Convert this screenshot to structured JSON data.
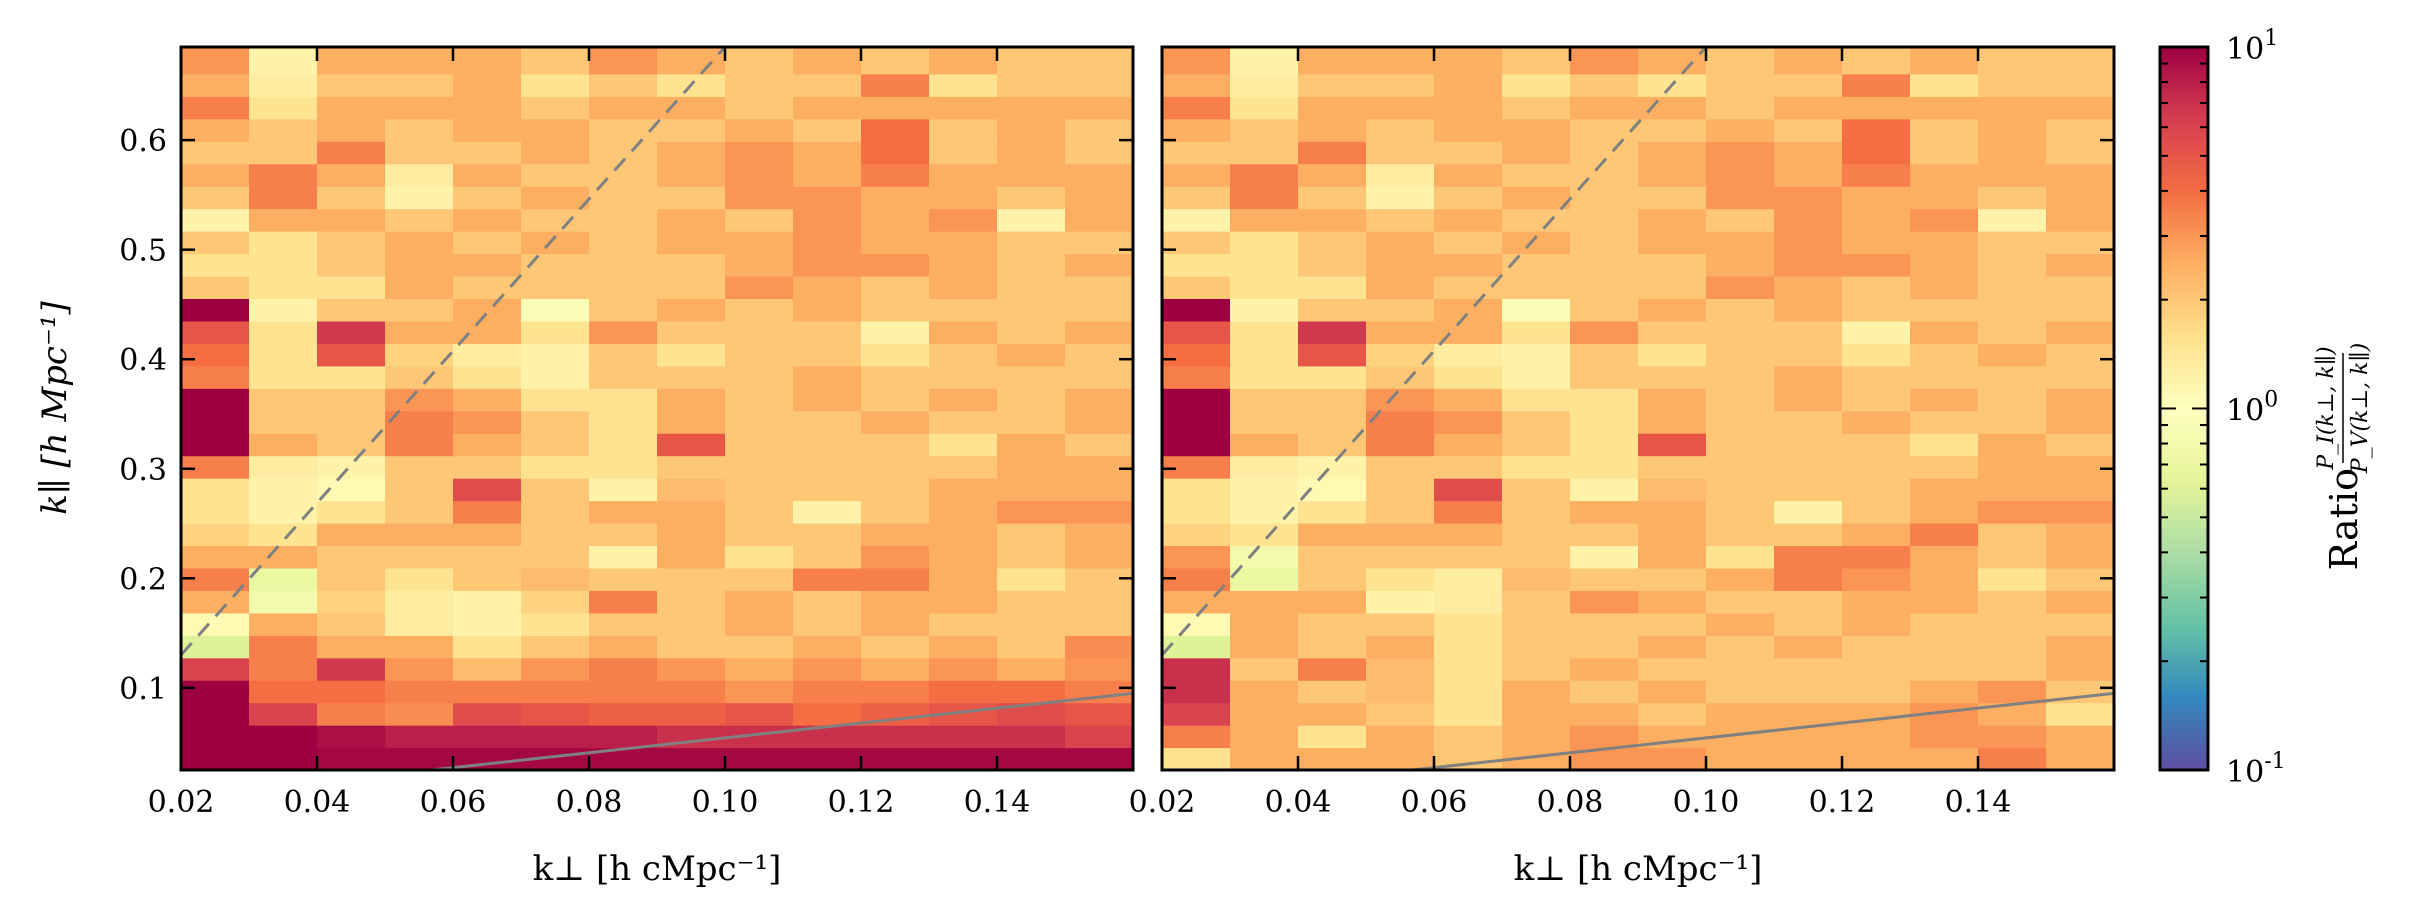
{
  "chart_data": [
    {
      "type": "heatmap",
      "panel": "left",
      "xlabel": "k⊥ [h cMpc⁻¹]",
      "ylabel": "k∥ [h Mpc⁻¹]",
      "xlim": [
        0.02,
        0.16
      ],
      "ylim": [
        0.025,
        0.685
      ],
      "xticks": [
        0.02,
        0.04,
        0.06,
        0.08,
        0.1,
        0.12,
        0.14
      ],
      "xtick_labels": [
        "0.02",
        "0.04",
        "0.06",
        "0.08",
        "0.10",
        "0.12",
        "0.14"
      ],
      "yticks": [
        0.1,
        0.2,
        0.3,
        0.4,
        0.5,
        0.6
      ],
      "ytick_labels": [
        "0.1",
        "0.2",
        "0.3",
        "0.4",
        "0.5",
        "0.6"
      ],
      "x_bin_edges": [
        0.02,
        0.03,
        0.04,
        0.05,
        0.06,
        0.07,
        0.08,
        0.09,
        0.1,
        0.11,
        0.12,
        0.13,
        0.14,
        0.15,
        0.16
      ],
      "y_bin_edges": [
        0.025,
        0.0455,
        0.066,
        0.0865,
        0.107,
        0.1275,
        0.148,
        0.1685,
        0.189,
        0.2095,
        0.23,
        0.2505,
        0.271,
        0.2915,
        0.312,
        0.3325,
        0.353,
        0.3735,
        0.394,
        0.4145,
        0.435,
        0.4555,
        0.476,
        0.4965,
        0.517,
        0.5375,
        0.558,
        0.5785,
        0.599,
        0.6195,
        0.64,
        0.6605,
        0.685
      ],
      "z": [
        [
          10,
          10,
          9.5,
          9.5,
          9.5,
          9.5,
          9.5,
          9.5,
          9.5,
          9.5,
          9.5,
          9.5,
          9.5,
          9.5
        ],
        [
          10,
          10,
          9,
          8,
          8,
          8,
          8,
          7,
          7,
          7,
          7,
          7,
          7,
          6
        ],
        [
          10,
          6,
          3.5,
          3.2,
          5.5,
          5,
          4.5,
          4.5,
          5,
          4,
          4.5,
          5,
          5.5,
          5
        ],
        [
          10,
          4,
          4,
          3.5,
          3.5,
          3.5,
          3.5,
          3.5,
          3,
          3.5,
          3.5,
          4,
          4,
          3.5
        ],
        [
          6,
          3.5,
          6.5,
          3,
          2.2,
          3,
          3.5,
          3,
          2.5,
          3,
          2.5,
          3,
          2.5,
          3
        ],
        [
          0.6,
          3.5,
          2.5,
          2.5,
          1.5,
          2,
          2.5,
          2,
          2,
          2.5,
          2,
          2.5,
          2,
          3.2
        ],
        [
          1.1,
          2.5,
          2,
          1.3,
          1.2,
          1.5,
          2,
          2,
          2.5,
          2,
          2.5,
          2,
          2,
          2
        ],
        [
          2.5,
          0.8,
          1.8,
          1.3,
          1.2,
          1.8,
          3.5,
          2,
          2.5,
          2,
          2.5,
          2.5,
          2,
          2
        ],
        [
          3.5,
          0.7,
          2,
          1.5,
          2,
          2.2,
          2,
          2,
          2,
          3.5,
          3.5,
          2.5,
          1.5,
          2
        ],
        [
          2.5,
          2.5,
          2,
          2,
          2,
          2,
          1.2,
          2.5,
          1.5,
          2,
          3,
          2.5,
          2,
          2.5
        ],
        [
          1.8,
          1.5,
          2.5,
          2.5,
          2.5,
          2,
          2,
          2.5,
          2,
          2,
          2.5,
          2.5,
          2,
          2.5
        ],
        [
          1.5,
          1.2,
          1.5,
          2,
          3.5,
          2,
          2.5,
          2.5,
          2,
          1.2,
          2,
          2.5,
          3,
          3
        ],
        [
          1.5,
          1.2,
          1.1,
          2,
          5.5,
          2,
          1.2,
          2.2,
          2,
          2,
          2,
          2.5,
          2.5,
          2.5
        ],
        [
          3.5,
          1.3,
          1.2,
          2,
          2,
          1.5,
          1.5,
          2,
          2,
          2,
          2,
          2,
          2.5,
          2.5
        ],
        [
          10,
          2.5,
          2,
          3.5,
          2.5,
          2,
          1.5,
          5,
          2,
          2,
          2,
          1.5,
          2.5,
          2
        ],
        [
          10,
          2,
          2,
          3.5,
          3,
          2,
          1.5,
          2.5,
          2,
          2,
          2.5,
          2,
          2,
          2.5
        ],
        [
          10,
          2,
          2,
          3,
          2.5,
          1.5,
          1.5,
          2.5,
          2,
          2.5,
          2,
          2.5,
          2,
          2.5
        ],
        [
          3.5,
          1.5,
          1.5,
          2,
          1.5,
          1.2,
          2,
          2,
          2,
          2.5,
          2,
          2,
          2,
          2
        ],
        [
          4,
          1.5,
          5,
          1.8,
          1.3,
          1.2,
          2,
          1.5,
          2,
          2,
          1.5,
          2,
          2.5,
          2
        ],
        [
          5,
          1.5,
          6.5,
          2.5,
          2.5,
          1.5,
          3,
          2,
          2,
          2,
          1.2,
          2.5,
          2,
          2.5
        ],
        [
          10,
          1.2,
          2,
          2,
          2.5,
          0.9,
          2,
          2.5,
          2,
          2.5,
          2,
          2,
          2,
          2
        ],
        [
          2,
          1.5,
          1.5,
          2.5,
          2,
          2,
          2,
          2,
          3,
          2.5,
          2,
          2.5,
          2,
          2
        ],
        [
          1.5,
          1.5,
          2,
          2.5,
          2.5,
          2,
          2,
          2,
          2.5,
          3,
          3,
          2.5,
          2,
          2.5
        ],
        [
          2,
          1.5,
          2,
          2.5,
          2,
          2.5,
          2,
          2.5,
          2.5,
          3,
          2.5,
          2.5,
          2,
          2
        ],
        [
          1.2,
          2.5,
          2.5,
          2,
          2.5,
          2,
          2,
          2.5,
          2,
          3,
          2.5,
          3,
          1.2,
          2.5
        ],
        [
          2,
          3.5,
          2,
          1.2,
          2,
          2.5,
          2,
          2,
          3,
          3,
          2.5,
          2.5,
          2,
          2.5
        ],
        [
          2.5,
          3.5,
          2.5,
          1.3,
          2.5,
          2,
          2,
          2.5,
          3,
          2.5,
          3.5,
          2.5,
          2.5,
          2.5
        ],
        [
          2,
          2,
          3.5,
          2,
          2,
          2.5,
          2,
          2.5,
          3,
          2.5,
          4,
          2,
          2.5,
          2
        ],
        [
          2.5,
          2,
          2.5,
          2,
          2.5,
          2.5,
          2,
          2,
          2.5,
          2,
          4,
          2,
          2.5,
          2
        ],
        [
          3.5,
          1.5,
          2.5,
          2.5,
          2.5,
          2,
          2.5,
          2.5,
          2,
          2.5,
          2.5,
          2.5,
          2.5,
          2.5
        ],
        [
          2.5,
          1.3,
          2,
          2,
          2.5,
          1.5,
          2,
          1.5,
          2,
          2,
          3.5,
          1.5,
          2,
          2
        ],
        [
          3,
          1.2,
          2.5,
          2.5,
          2.5,
          2,
          3,
          2.5,
          2,
          2.5,
          2,
          2.5,
          2,
          2
        ]
      ],
      "dashed_line": {
        "x": [
          0.02,
          0.1
        ],
        "y": [
          0.13,
          0.685
        ]
      },
      "solid_line": {
        "x": [
          0.02,
          0.16
        ],
        "y": [
          0.0,
          0.095
        ]
      }
    },
    {
      "type": "heatmap",
      "panel": "right",
      "xlabel": "k⊥ [h cMpc⁻¹]",
      "xlim": [
        0.02,
        0.16
      ],
      "ylim": [
        0.025,
        0.685
      ],
      "xticks": [
        0.02,
        0.04,
        0.06,
        0.08,
        0.1,
        0.12,
        0.14
      ],
      "xtick_labels": [
        "0.02",
        "0.04",
        "0.06",
        "0.08",
        "0.10",
        "0.12",
        "0.14"
      ],
      "yticks": [
        0.1,
        0.2,
        0.3,
        0.4,
        0.5,
        0.6
      ],
      "x_bin_edges": [
        0.02,
        0.03,
        0.04,
        0.05,
        0.06,
        0.07,
        0.08,
        0.09,
        0.1,
        0.11,
        0.12,
        0.13,
        0.14,
        0.15,
        0.16
      ],
      "y_bin_edges": [
        0.025,
        0.0455,
        0.066,
        0.0865,
        0.107,
        0.1275,
        0.148,
        0.1685,
        0.189,
        0.2095,
        0.23,
        0.2505,
        0.271,
        0.2915,
        0.312,
        0.3325,
        0.353,
        0.3735,
        0.394,
        0.4145,
        0.435,
        0.4555,
        0.476,
        0.4965,
        0.517,
        0.5375,
        0.558,
        0.5785,
        0.599,
        0.6195,
        0.64,
        0.6605,
        0.685
      ],
      "z": [
        [
          1.5,
          2.5,
          2.5,
          2.5,
          2,
          2.5,
          3,
          3,
          2.5,
          2.5,
          2.5,
          2.5,
          3.5,
          2.5
        ],
        [
          3.5,
          2.5,
          1.5,
          2.5,
          2,
          2.5,
          3,
          2.5,
          2.5,
          2.5,
          2.5,
          3,
          3,
          2.5
        ],
        [
          6,
          2.5,
          2.5,
          2,
          1.5,
          2.5,
          2.5,
          2,
          2.5,
          2.5,
          2.5,
          3,
          2.5,
          1.5
        ],
        [
          7,
          2.5,
          2,
          2.2,
          1.5,
          2.5,
          2,
          2.5,
          2,
          2,
          2,
          2.5,
          3,
          2
        ],
        [
          7,
          2,
          3.5,
          2.2,
          1.5,
          2,
          2.5,
          2,
          2,
          2,
          2,
          2,
          2,
          2.5
        ],
        [
          0.6,
          2.5,
          2,
          2.5,
          1.5,
          2,
          2,
          2.5,
          2,
          2.5,
          2,
          2,
          2,
          2.5
        ],
        [
          1.1,
          2.5,
          2,
          2,
          1.5,
          2,
          2,
          2,
          2.5,
          2,
          2.5,
          2,
          2,
          2
        ],
        [
          2.5,
          2.5,
          2.5,
          1.2,
          1.3,
          2,
          3,
          2.5,
          2,
          2,
          2.5,
          2.5,
          2,
          2.5
        ],
        [
          3.5,
          0.7,
          2,
          1.5,
          1.3,
          2.2,
          2,
          2,
          2.5,
          3.5,
          3,
          2.5,
          1.5,
          2
        ],
        [
          3,
          0.8,
          2,
          2,
          2,
          2,
          1.2,
          2.5,
          1.5,
          3.5,
          3.5,
          2.5,
          2,
          2.5
        ],
        [
          1.8,
          1.5,
          2.5,
          2.5,
          2.5,
          2,
          2,
          2.5,
          2,
          2,
          2.5,
          3.5,
          2,
          2.5
        ],
        [
          1.5,
          1.2,
          1.5,
          2,
          3.5,
          2,
          2.5,
          2.5,
          2,
          1.2,
          2,
          2.5,
          3,
          3
        ],
        [
          1.5,
          1.2,
          1.1,
          2,
          5.5,
          2,
          1.2,
          2.2,
          2,
          2,
          2,
          2.5,
          2.5,
          2.5
        ],
        [
          3.5,
          1.3,
          1.2,
          2,
          2,
          1.5,
          1.5,
          2,
          2,
          2,
          2,
          2,
          2.5,
          2.5
        ],
        [
          10,
          2.5,
          2,
          3.5,
          2.5,
          2,
          1.5,
          5,
          2,
          2,
          2,
          1.5,
          2.5,
          2
        ],
        [
          10,
          2,
          2,
          3.5,
          3,
          2,
          1.5,
          2.5,
          2,
          2,
          2.5,
          2,
          2,
          2.5
        ],
        [
          10,
          2,
          2,
          3,
          2.5,
          1.5,
          1.5,
          2.5,
          2,
          2.5,
          2,
          2.5,
          2,
          2.5
        ],
        [
          3.5,
          1.5,
          1.5,
          2,
          1.5,
          1.2,
          2,
          2,
          2,
          2.5,
          2,
          2,
          2,
          2
        ],
        [
          4,
          1.5,
          5,
          1.8,
          1.3,
          1.2,
          2,
          1.5,
          2,
          2,
          1.5,
          2,
          2.5,
          2
        ],
        [
          5,
          1.5,
          6.5,
          2.5,
          2.5,
          1.5,
          3,
          2,
          2,
          2,
          1.2,
          2.5,
          2,
          2.5
        ],
        [
          10,
          1.2,
          2,
          2,
          2.5,
          0.9,
          2,
          2.5,
          2,
          2.5,
          2,
          2,
          2,
          2
        ],
        [
          2,
          1.5,
          1.5,
          2.5,
          2,
          2,
          2,
          2,
          3,
          2.5,
          2,
          2.5,
          2,
          2
        ],
        [
          1.5,
          1.5,
          2,
          2.5,
          2.5,
          2,
          2,
          2,
          2.5,
          3,
          3,
          2.5,
          2,
          2.5
        ],
        [
          2,
          1.5,
          2,
          2.5,
          2,
          2.5,
          2,
          2.5,
          2.5,
          3,
          2.5,
          2.5,
          2,
          2
        ],
        [
          1.2,
          2.5,
          2.5,
          2,
          2.5,
          2,
          2,
          2.5,
          2,
          3,
          2.5,
          3,
          1.2,
          2.5
        ],
        [
          2,
          3.5,
          2,
          1.2,
          2,
          2.5,
          2,
          2,
          3,
          3,
          2.5,
          2.5,
          2,
          2.5
        ],
        [
          2.5,
          3.5,
          2.5,
          1.3,
          2.5,
          2,
          2,
          2.5,
          3,
          2.5,
          3.5,
          2.5,
          2.5,
          2.5
        ],
        [
          2,
          2,
          3.5,
          2,
          2,
          2.5,
          2,
          2.5,
          3,
          2.5,
          4,
          2,
          2.5,
          2
        ],
        [
          2.5,
          2,
          2.5,
          2,
          2.5,
          2.5,
          2,
          2,
          2.5,
          2,
          4,
          2,
          2.5,
          2
        ],
        [
          3.5,
          1.5,
          2.5,
          2.5,
          2.5,
          2,
          2.5,
          2.5,
          2,
          2.5,
          2.5,
          2.5,
          2.5,
          2.5
        ],
        [
          2.5,
          1.3,
          2,
          2,
          2.5,
          1.5,
          2,
          1.5,
          2,
          2,
          3.5,
          1.5,
          2,
          2
        ],
        [
          3,
          1.2,
          2.5,
          2.5,
          2.5,
          2,
          3,
          2.5,
          2,
          2.5,
          2,
          2.5,
          2,
          2
        ]
      ],
      "dashed_line": {
        "x": [
          0.02,
          0.1
        ],
        "y": [
          0.13,
          0.685
        ]
      },
      "solid_line": {
        "x": [
          0.02,
          0.16
        ],
        "y": [
          0.0,
          0.095
        ]
      }
    }
  ],
  "colorbar": {
    "scale": "log",
    "range": [
      0.1,
      10
    ],
    "colormap": "Spectral_r",
    "tick_labels": [
      {
        "base": "10",
        "exp": "1"
      },
      {
        "base": "10",
        "exp": "0"
      },
      {
        "base": "10",
        "exp": "-1"
      }
    ],
    "label_prefix": "Ratio",
    "label_numerator": "P_I(k⊥, k∥)",
    "label_denominator": "P_V(k⊥, k∥)"
  }
}
